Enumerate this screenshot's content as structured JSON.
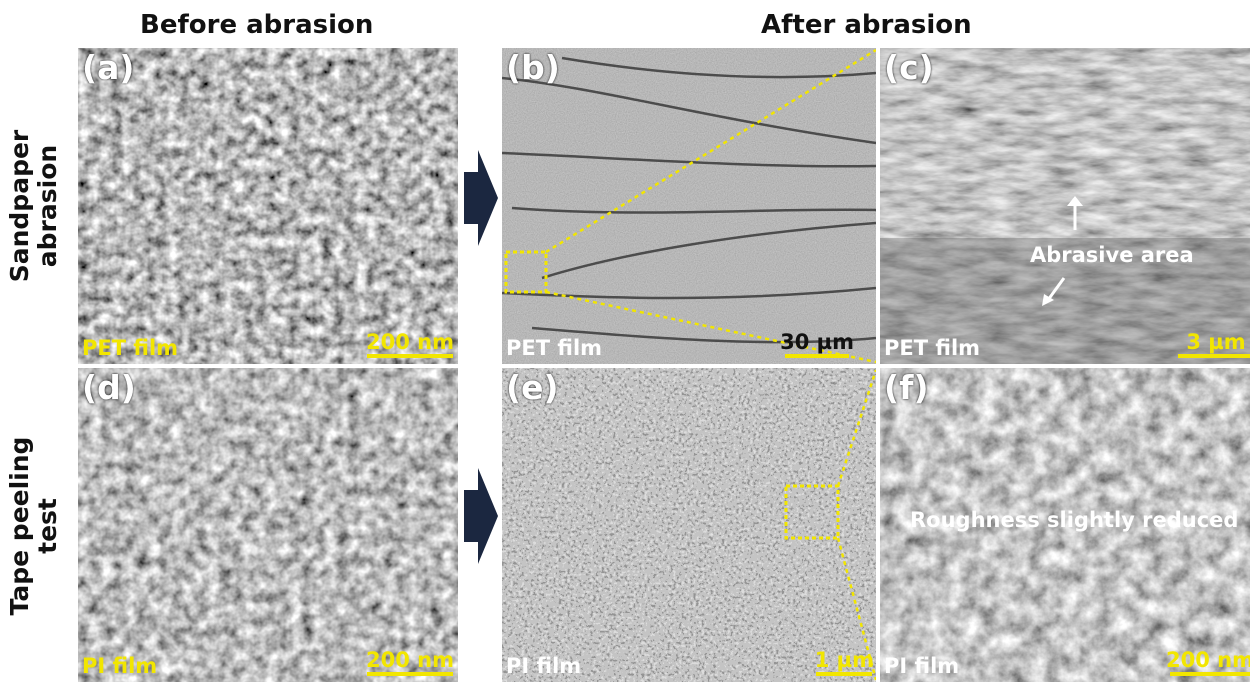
{
  "headers": {
    "before": "Before abrasion",
    "after": "After abrasion"
  },
  "rows": {
    "top": "Sandpaper\nabrasion",
    "bottom": "Tape peeling\ntest"
  },
  "panels": {
    "a": {
      "label": "(a)",
      "film": "PET film",
      "scale": "200 nm"
    },
    "b": {
      "label": "(b)",
      "film": "PET film",
      "scale": "30 µm"
    },
    "c": {
      "label": "(c)",
      "film": "PET film",
      "scale": "3 µm",
      "annotation": "Abrasive area"
    },
    "d": {
      "label": "(d)",
      "film": "PI film",
      "scale": "200 nm"
    },
    "e": {
      "label": "(e)",
      "film": "PI film",
      "scale": "1 µm"
    },
    "f": {
      "label": "(f)",
      "film": "PI film",
      "scale": "200 nm",
      "annotation": "Roughness slightly reduced"
    }
  },
  "colors": {
    "accent": "#f2e600",
    "arrow": "#1b2740"
  }
}
